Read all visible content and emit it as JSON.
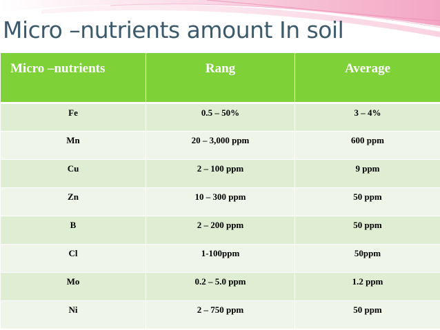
{
  "slide": {
    "title": "Micro –nutrients amount In soil"
  },
  "table": {
    "headers": [
      "Micro –nutrients",
      "Rang",
      "Average"
    ],
    "rows": [
      [
        "Fe",
        "0.5 – 50%",
        "3 – 4%"
      ],
      [
        "Mn",
        "20 – 3,000 ppm",
        "600 ppm"
      ],
      [
        "Cu",
        "2 – 100 ppm",
        "9 ppm"
      ],
      [
        "Zn",
        "10 – 300 ppm",
        "50 ppm"
      ],
      [
        "B",
        "2 – 200 ppm",
        "50 ppm"
      ],
      [
        "Cl",
        "1-100ppm",
        "50ppm"
      ],
      [
        "Mo",
        "0.2 – 5.0 ppm",
        "1.2 ppm"
      ],
      [
        "Ni",
        "2 – 750 ppm",
        "50 ppm"
      ]
    ]
  },
  "colors": {
    "header_green": "#7ed237",
    "row_odd": "#dfeed3",
    "row_even": "#eff6e9",
    "title_color": "#3b5a6b",
    "decoration_pink": "#f3a6c4"
  }
}
